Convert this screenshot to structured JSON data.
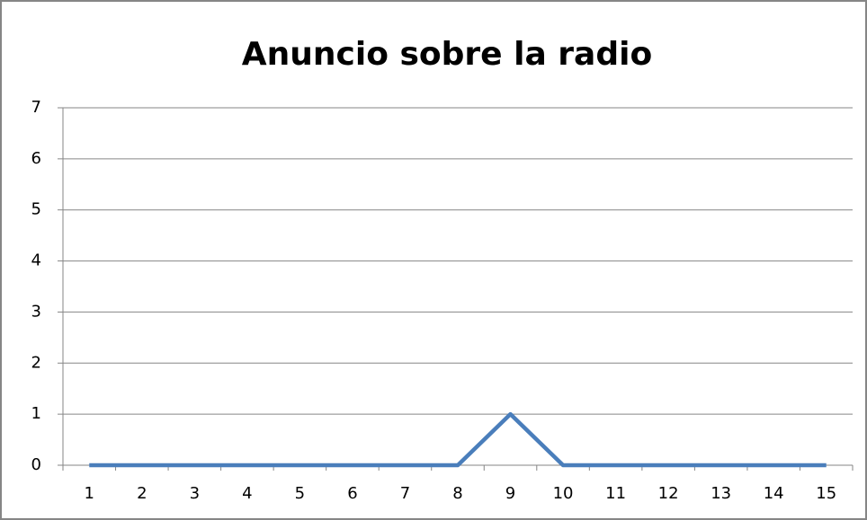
{
  "chart_data": {
    "type": "line",
    "title": "Anuncio sobre la radio",
    "categories": [
      "1",
      "2",
      "3",
      "4",
      "5",
      "6",
      "7",
      "8",
      "9",
      "10",
      "11",
      "12",
      "13",
      "14",
      "15"
    ],
    "series": [
      {
        "color": "#4a7ebb",
        "values": [
          0,
          0,
          0,
          0,
          0,
          0,
          0,
          0,
          1,
          0,
          0,
          0,
          0,
          0,
          0
        ]
      }
    ],
    "ylim": [
      0,
      7
    ],
    "yticks": [
      0,
      1,
      2,
      3,
      4,
      5,
      6,
      7
    ],
    "grid": true
  }
}
